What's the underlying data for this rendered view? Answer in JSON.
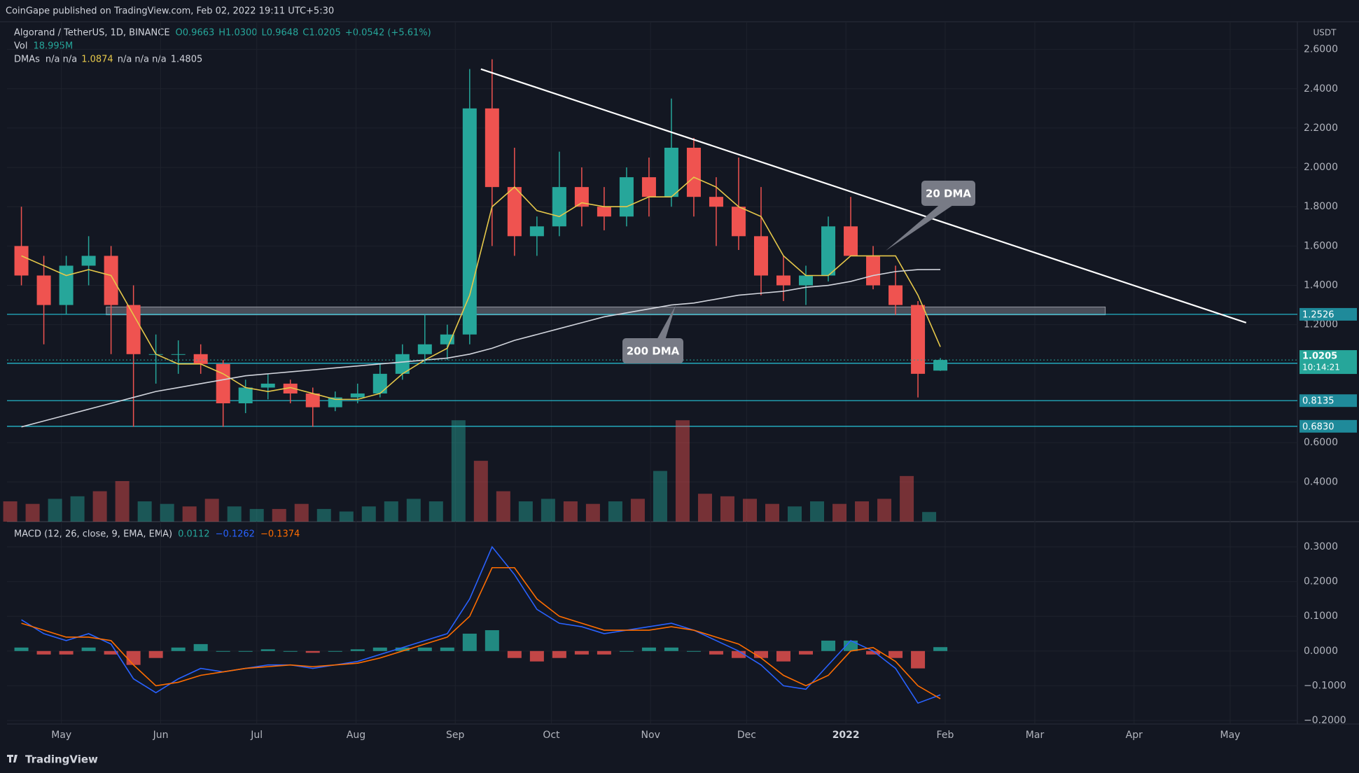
{
  "header": {
    "publisher": "CoinGape published on TradingView.com, Feb 02, 2022 19:11 UTC+5:30",
    "brand": "TradingView"
  },
  "chart_data": {
    "type": "candlestick",
    "symbol": "Algorand / TetherUS, 1D, BINANCE",
    "legend": {
      "o": {
        "value": 0.9663,
        "label": "O0.9663"
      },
      "h": {
        "value": 1.03,
        "label": "H1.0300"
      },
      "l": {
        "value": 0.9648,
        "label": "L0.9648"
      },
      "c": {
        "value": 1.0205,
        "label": "C1.0205"
      },
      "change": {
        "value": 0.0542,
        "label": "+0.0542 (+5.61%)"
      },
      "vol_name": "Vol",
      "vol": {
        "value": 18.995,
        "label": "18.995M"
      },
      "dma_name": "DMAs",
      "dma_na": "n/a n/a",
      "dma20": 1.0874,
      "dma_na2": "n/a n/a n/a",
      "dma200": 1.4805,
      "macd_name": "MACD (12, 26, close, 9, EMA, EMA)",
      "macd_hist": 0.0112,
      "macd_line": {
        "value": -0.1262,
        "label": "−0.1262"
      },
      "macd_signal": {
        "value": -0.1374,
        "label": "−0.1374"
      }
    },
    "currency": "USDT",
    "x": [
      "2021-04-15",
      "2021-04-22",
      "2021-04-29",
      "2021-05-06",
      "2021-05-13",
      "2021-05-20",
      "2021-05-27",
      "2021-06-03",
      "2021-06-10",
      "2021-06-17",
      "2021-06-24",
      "2021-07-01",
      "2021-07-08",
      "2021-07-15",
      "2021-07-22",
      "2021-07-29",
      "2021-08-05",
      "2021-08-12",
      "2021-08-19",
      "2021-08-26",
      "2021-09-02",
      "2021-09-09",
      "2021-09-16",
      "2021-09-23",
      "2021-09-30",
      "2021-10-07",
      "2021-10-14",
      "2021-10-21",
      "2021-10-28",
      "2021-11-04",
      "2021-11-11",
      "2021-11-18",
      "2021-11-25",
      "2021-12-02",
      "2021-12-09",
      "2021-12-16",
      "2021-12-23",
      "2021-12-30",
      "2022-01-06",
      "2022-01-13",
      "2022-01-20",
      "2022-01-27"
    ],
    "open": [
      1.6,
      1.45,
      1.3,
      1.5,
      1.55,
      1.3,
      1.05,
      1.05,
      1.05,
      1.0,
      0.8,
      0.88,
      0.9,
      0.85,
      0.78,
      0.83,
      0.85,
      0.95,
      1.05,
      1.1,
      1.15,
      2.3,
      1.9,
      1.65,
      1.7,
      1.9,
      1.8,
      1.75,
      1.95,
      1.85,
      2.1,
      1.85,
      1.8,
      1.65,
      1.45,
      1.4,
      1.45,
      1.7,
      1.55,
      1.4,
      1.3,
      0.9663
    ],
    "high": [
      1.8,
      1.55,
      1.55,
      1.65,
      1.6,
      1.4,
      1.15,
      1.12,
      1.1,
      1.02,
      0.92,
      0.95,
      0.92,
      0.88,
      0.86,
      0.9,
      1.0,
      1.1,
      1.25,
      1.2,
      2.5,
      2.55,
      2.1,
      1.75,
      2.08,
      2.0,
      1.9,
      2.0,
      2.05,
      2.35,
      2.15,
      1.95,
      2.05,
      1.9,
      1.55,
      1.5,
      1.75,
      1.85,
      1.6,
      1.5,
      1.32,
      1.03
    ],
    "low": [
      1.4,
      1.1,
      1.25,
      1.4,
      1.05,
      0.68,
      0.9,
      0.95,
      0.95,
      0.68,
      0.75,
      0.82,
      0.8,
      0.68,
      0.76,
      0.8,
      0.83,
      0.92,
      1.0,
      1.02,
      1.1,
      1.6,
      1.55,
      1.55,
      1.65,
      1.7,
      1.68,
      1.7,
      1.75,
      1.8,
      1.75,
      1.6,
      1.58,
      1.35,
      1.32,
      1.3,
      1.42,
      1.55,
      1.38,
      1.25,
      0.83,
      0.9648
    ],
    "close": [
      1.45,
      1.3,
      1.5,
      1.55,
      1.3,
      1.05,
      1.05,
      1.05,
      1.0,
      0.8,
      0.88,
      0.9,
      0.85,
      0.78,
      0.83,
      0.85,
      0.95,
      1.05,
      1.1,
      1.15,
      2.3,
      1.9,
      1.65,
      1.7,
      1.9,
      1.8,
      1.75,
      1.95,
      1.85,
      2.1,
      1.85,
      1.8,
      1.65,
      1.45,
      1.4,
      1.45,
      1.7,
      1.55,
      1.4,
      1.3,
      0.95,
      1.0205
    ],
    "volume": [
      40,
      35,
      45,
      50,
      60,
      80,
      40,
      35,
      30,
      45,
      30,
      25,
      25,
      35,
      25,
      20,
      30,
      40,
      45,
      40,
      200,
      120,
      60,
      40,
      45,
      40,
      35,
      40,
      45,
      100,
      200,
      55,
      50,
      45,
      35,
      30,
      40,
      35,
      40,
      45,
      90,
      18.995
    ],
    "vlim": [
      0,
      250
    ],
    "dma20": [
      1.55,
      1.5,
      1.45,
      1.48,
      1.45,
      1.25,
      1.05,
      1.0,
      1.0,
      0.95,
      0.88,
      0.86,
      0.88,
      0.85,
      0.82,
      0.82,
      0.85,
      0.95,
      1.02,
      1.08,
      1.35,
      1.8,
      1.9,
      1.78,
      1.75,
      1.82,
      1.8,
      1.8,
      1.85,
      1.85,
      1.95,
      1.9,
      1.8,
      1.75,
      1.55,
      1.45,
      1.45,
      1.55,
      1.55,
      1.55,
      1.35,
      1.0874
    ],
    "dma200": [
      0.68,
      0.71,
      0.74,
      0.77,
      0.8,
      0.83,
      0.86,
      0.88,
      0.9,
      0.92,
      0.94,
      0.95,
      0.96,
      0.97,
      0.98,
      0.99,
      1.0,
      1.01,
      1.02,
      1.03,
      1.05,
      1.08,
      1.12,
      1.15,
      1.18,
      1.21,
      1.24,
      1.26,
      1.28,
      1.3,
      1.31,
      1.33,
      1.35,
      1.36,
      1.37,
      1.39,
      1.4,
      1.42,
      1.45,
      1.47,
      1.48,
      1.4805
    ],
    "macd": [
      0.09,
      0.05,
      0.03,
      0.05,
      0.02,
      -0.08,
      -0.12,
      -0.08,
      -0.05,
      -0.06,
      -0.05,
      -0.04,
      -0.04,
      -0.05,
      -0.04,
      -0.03,
      -0.01,
      0.01,
      0.03,
      0.05,
      0.15,
      0.3,
      0.22,
      0.12,
      0.08,
      0.07,
      0.05,
      0.06,
      0.07,
      0.08,
      0.06,
      0.03,
      0.0,
      -0.04,
      -0.1,
      -0.11,
      -0.04,
      0.03,
      0.0,
      -0.05,
      -0.15,
      -0.1262
    ],
    "signal": [
      0.08,
      0.06,
      0.04,
      0.04,
      0.03,
      -0.04,
      -0.1,
      -0.09,
      -0.07,
      -0.06,
      -0.05,
      -0.045,
      -0.04,
      -0.045,
      -0.04,
      -0.035,
      -0.02,
      0.0,
      0.02,
      0.04,
      0.1,
      0.24,
      0.24,
      0.15,
      0.1,
      0.08,
      0.06,
      0.06,
      0.06,
      0.07,
      0.06,
      0.04,
      0.02,
      -0.02,
      -0.07,
      -0.1,
      -0.07,
      0.0,
      0.01,
      -0.03,
      -0.1,
      -0.1374
    ],
    "hist": [
      0.01,
      -0.01,
      -0.01,
      0.01,
      -0.01,
      -0.04,
      -0.02,
      0.01,
      0.02,
      0,
      0,
      0.005,
      0,
      -0.005,
      0,
      0.005,
      0.01,
      0.01,
      0.01,
      0.01,
      0.05,
      0.06,
      -0.02,
      -0.03,
      -0.02,
      -0.01,
      -0.01,
      0,
      0.01,
      0.01,
      0,
      -0.01,
      -0.02,
      -0.02,
      -0.03,
      -0.01,
      0.03,
      0.03,
      -0.01,
      -0.02,
      -0.05,
      0.0112
    ],
    "xlim": [
      "2021-04-14",
      "2022-05-22"
    ],
    "xticks": [
      {
        "value": "2021-05-01",
        "label": "May"
      },
      {
        "value": "2021-06-01",
        "label": "Jun"
      },
      {
        "value": "2021-07-01",
        "label": "Jul"
      },
      {
        "value": "2021-08-01",
        "label": "Aug"
      },
      {
        "value": "2021-09-01",
        "label": "Sep"
      },
      {
        "value": "2021-10-01",
        "label": "Oct"
      },
      {
        "value": "2021-11-01",
        "label": "Nov"
      },
      {
        "value": "2021-12-01",
        "label": "Dec"
      },
      {
        "value": "2022-01-01",
        "label": "2022"
      },
      {
        "value": "2022-02-01",
        "label": "Feb"
      },
      {
        "value": "2022-03-01",
        "label": "Mar"
      },
      {
        "value": "2022-04-01",
        "label": "Apr"
      },
      {
        "value": "2022-05-01",
        "label": "May"
      }
    ],
    "ylim": [
      0.4,
      2.6
    ],
    "yticks": [
      {
        "value": 0.4,
        "label": "0.4000"
      },
      {
        "value": 0.6,
        "label": "0.6000"
      },
      {
        "value": 1.2,
        "label": "1.2000"
      },
      {
        "value": 1.4,
        "label": "1.4000"
      },
      {
        "value": 1.6,
        "label": "1.6000"
      },
      {
        "value": 1.8,
        "label": "1.8000"
      },
      {
        "value": 2.0,
        "label": "2.0000"
      },
      {
        "value": 2.2,
        "label": "2.2000"
      },
      {
        "value": 2.4,
        "label": "2.4000"
      },
      {
        "value": 2.6,
        "label": "2.6000"
      }
    ],
    "y2lim": [
      -0.2,
      0.3
    ],
    "y2ticks": [
      {
        "value": 0.3,
        "label": "0.3000"
      },
      {
        "value": 0.2,
        "label": "0.2000"
      },
      {
        "value": 0.1,
        "label": "0.1000"
      },
      {
        "value": 0,
        "label": "0.0000"
      },
      {
        "value": -0.1,
        "label": "−0.1000"
      },
      {
        "value": -0.2,
        "label": "−0.2000"
      }
    ],
    "levels": [
      1.2526,
      1.0034,
      0.8135,
      {
        "value": 0.683,
        "label": "0.6830"
      }
    ],
    "last_price": {
      "value": 1.0205,
      "label": "1.0205",
      "countdown": "10:14:21"
    },
    "zone": {
      "x": [
        "2021-05-15",
        "2022-03-23"
      ],
      "y": [
        1.25,
        1.29
      ]
    },
    "trendline": {
      "x": [
        "2021-09-09",
        "2022-05-06"
      ],
      "y": [
        2.5,
        1.21
      ]
    },
    "annotations": [
      "20 DMA",
      "200 DMA"
    ],
    "grid": true,
    "colors": {
      "up": "#26a69a",
      "down": "#ef5350",
      "dma20": "#e6c84a",
      "dma200": "#d1d4dc",
      "macd": "#2962ff",
      "signal": "#ff6d00",
      "level": "#26c6da",
      "trend": "#ffffff"
    }
  }
}
